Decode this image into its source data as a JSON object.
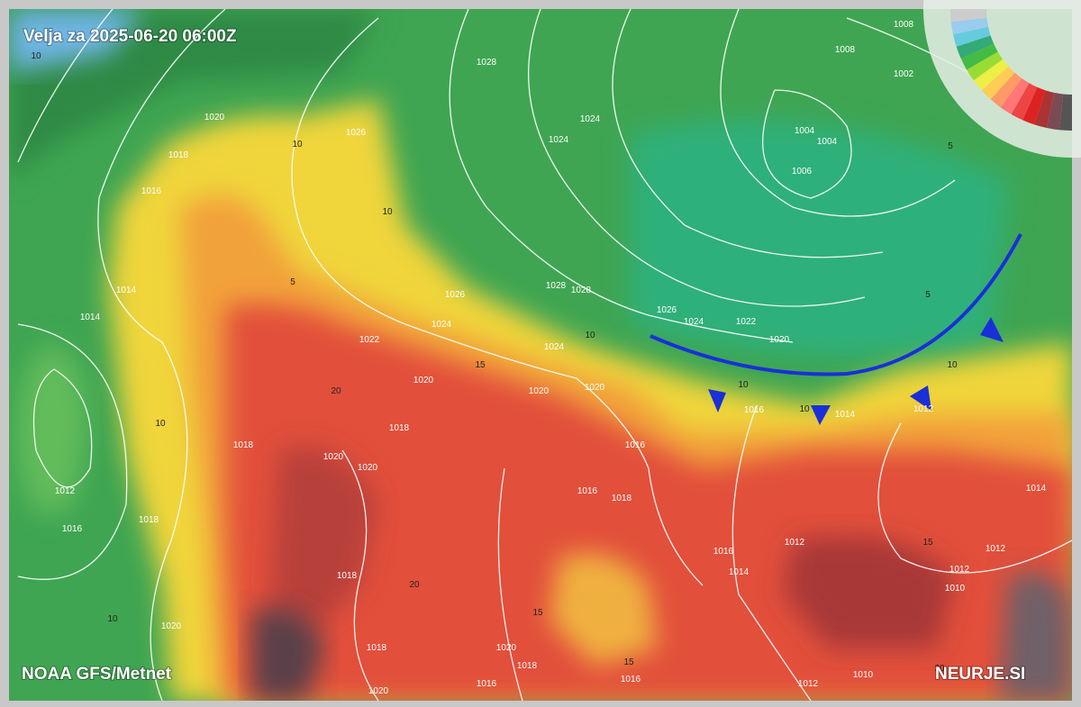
{
  "header": {
    "title": "Velja za 2025-06-20 06:00Z"
  },
  "footer": {
    "source": "NOAA GFS/Metnet",
    "brand": "NEURJE.SI"
  },
  "isobar_labels": [
    "1028",
    "1024",
    "1024",
    "1026",
    "1018",
    "1016",
    "1014",
    "1014",
    "1012",
    "1016",
    "1018",
    "1020",
    "1018",
    "1018",
    "1020",
    "1022",
    "1024",
    "1026",
    "1028",
    "1028",
    "1026",
    "1024",
    "1022",
    "1020",
    "1024",
    "1020",
    "1020",
    "1016",
    "1016",
    "1018",
    "1016",
    "1014",
    "1012",
    "1014",
    "1012",
    "1016",
    "1014",
    "1012",
    "1012",
    "1010",
    "1010",
    "1012",
    "1016",
    "1016",
    "1018",
    "1020",
    "1018",
    "1020",
    "1018",
    "1020",
    "1020",
    "1004",
    "1004",
    "1006",
    "1008",
    "1008",
    "1002",
    "1020"
  ],
  "temperature_labels": [
    "10",
    "10",
    "5",
    "10",
    "15",
    "20",
    "10",
    "10",
    "5",
    "5",
    "10",
    "10",
    "10",
    "15",
    "20",
    "20",
    "15",
    "15",
    "10"
  ]
}
